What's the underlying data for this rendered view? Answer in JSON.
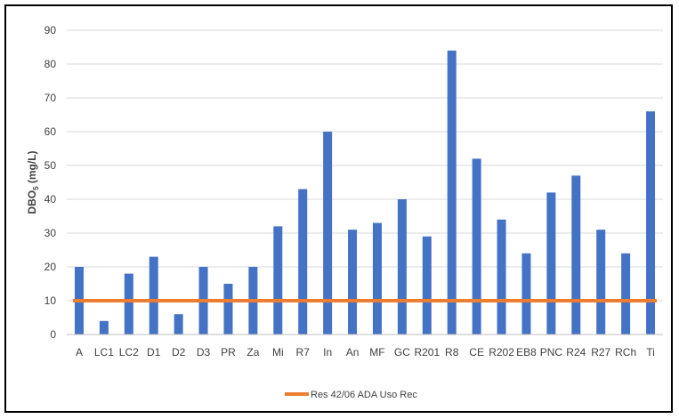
{
  "chart_data": {
    "type": "bar",
    "categories": [
      "A",
      "LC1",
      "LC2",
      "D1",
      "D2",
      "D3",
      "PR",
      "Za",
      "Mi",
      "R7",
      "In",
      "An",
      "MF",
      "GC",
      "R201",
      "R8",
      "CE",
      "R202",
      "EB8",
      "PNC",
      "R24",
      "R27",
      "RCh",
      "Ti"
    ],
    "values": [
      20,
      4,
      18,
      23,
      6,
      20,
      15,
      20,
      32,
      43,
      60,
      31,
      33,
      40,
      29,
      84,
      52,
      34,
      24,
      42,
      47,
      31,
      24,
      66
    ],
    "title": "",
    "xlabel": "",
    "ylabel_main": "DBO",
    "ylabel_sub": "5",
    "ylabel_unit": " (mg/L)",
    "ylim": [
      0,
      90
    ],
    "yticks": [
      0,
      10,
      20,
      30,
      40,
      50,
      60,
      70,
      80,
      90
    ],
    "grid": true,
    "bar_color": "#4472C4",
    "reference_line": {
      "name": "Res 42/06 ADA Uso Rec",
      "value": 10,
      "color": "#ED7D31"
    },
    "legend_position": "bottom-center"
  }
}
